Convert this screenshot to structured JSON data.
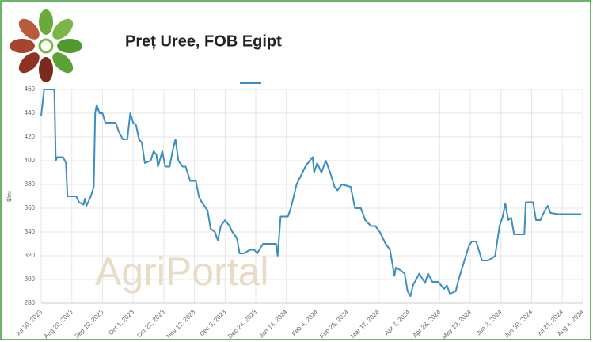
{
  "chart_data": {
    "type": "line",
    "title": "Preț Uree, FOB Egipt",
    "y_label": "$/mt",
    "watermark": "AgriPortal",
    "x": [
      "2023-07-30",
      "2023-08-01",
      "2023-08-08",
      "2023-08-09",
      "2023-08-10",
      "2023-08-14",
      "2023-08-16",
      "2023-08-17",
      "2023-08-23",
      "2023-08-25",
      "2023-08-28",
      "2023-08-29",
      "2023-08-30",
      "2023-09-02",
      "2023-09-04",
      "2023-09-05",
      "2023-09-06",
      "2023-09-08",
      "2023-09-10",
      "2023-09-12",
      "2023-09-19",
      "2023-09-21",
      "2023-09-24",
      "2023-09-27",
      "2023-09-29",
      "2023-10-01",
      "2023-10-03",
      "2023-10-05",
      "2023-10-07",
      "2023-10-09",
      "2023-10-13",
      "2023-10-15",
      "2023-10-17",
      "2023-10-18",
      "2023-10-21",
      "2023-10-23",
      "2023-10-26",
      "2023-10-28",
      "2023-10-30",
      "2023-11-01",
      "2023-11-04",
      "2023-11-06",
      "2023-11-09",
      "2023-11-13",
      "2023-11-15",
      "2023-11-17",
      "2023-11-21",
      "2023-11-23",
      "2023-11-26",
      "2023-11-28",
      "2023-11-30",
      "2023-12-03",
      "2023-12-06",
      "2023-12-08",
      "2023-12-11",
      "2023-12-13",
      "2023-12-16",
      "2023-12-20",
      "2023-12-23",
      "2023-12-25",
      "2023-12-29",
      "2024-01-07",
      "2024-01-08",
      "2024-01-10",
      "2024-01-15",
      "2024-01-17",
      "2024-01-19",
      "2024-01-21",
      "2024-01-23",
      "2024-01-27",
      "2024-01-30",
      "2024-02-01",
      "2024-02-02",
      "2024-02-04",
      "2024-02-07",
      "2024-02-10",
      "2024-02-13",
      "2024-02-16",
      "2024-02-18",
      "2024-02-21",
      "2024-02-27",
      "2024-03-01",
      "2024-03-05",
      "2024-03-08",
      "2024-03-12",
      "2024-03-15",
      "2024-03-18",
      "2024-03-22",
      "2024-03-25",
      "2024-03-28",
      "2024-03-29",
      "2024-04-01",
      "2024-04-04",
      "2024-04-06",
      "2024-04-08",
      "2024-04-10",
      "2024-04-12",
      "2024-04-14",
      "2024-04-18",
      "2024-04-20",
      "2024-04-23",
      "2024-04-27",
      "2024-05-01",
      "2024-05-03",
      "2024-05-05",
      "2024-05-09",
      "2024-05-11",
      "2024-05-14",
      "2024-05-16",
      "2024-05-18",
      "2024-05-20",
      "2024-05-23",
      "2024-05-27",
      "2024-05-31",
      "2024-06-03",
      "2024-06-05",
      "2024-06-08",
      "2024-06-10",
      "2024-06-12",
      "2024-06-14",
      "2024-06-16",
      "2024-06-18",
      "2024-06-25",
      "2024-06-26",
      "2024-07-01",
      "2024-07-03",
      "2024-07-06",
      "2024-07-09",
      "2024-07-11",
      "2024-07-13",
      "2024-07-18",
      "2024-08-03"
    ],
    "series": [
      {
        "color": "#3d8ec0",
        "values": [
          438,
          460,
          460,
          400,
          403,
          403,
          398,
          370,
          370,
          365,
          363,
          368,
          362,
          370,
          378,
          440,
          447,
          440,
          440,
          432,
          432,
          425,
          418,
          418,
          440,
          432,
          430,
          418,
          415,
          398,
          400,
          408,
          405,
          395,
          408,
          395,
          395,
          408,
          418,
          400,
          395,
          395,
          383,
          383,
          370,
          365,
          358,
          343,
          340,
          333,
          345,
          350,
          345,
          340,
          335,
          322,
          322,
          325,
          325,
          322,
          330,
          330,
          320,
          353,
          353,
          360,
          370,
          380,
          385,
          395,
          400,
          403,
          390,
          398,
          390,
          400,
          390,
          378,
          375,
          380,
          378,
          360,
          360,
          350,
          345,
          345,
          340,
          330,
          325,
          303,
          310,
          308,
          305,
          290,
          286,
          296,
          300,
          305,
          297,
          305,
          298,
          298,
          292,
          295,
          288,
          290,
          300,
          312,
          320,
          328,
          332,
          332,
          316,
          316,
          318,
          320,
          345,
          352,
          364,
          350,
          352,
          338,
          338,
          365,
          365,
          350,
          350,
          358,
          362,
          356,
          355,
          355
        ]
      }
    ],
    "xlim": [
      "2023-07-30",
      "2024-08-04"
    ],
    "xticks": [
      {
        "value": "2023-07-30",
        "label": "Jul 30, 2023"
      },
      {
        "value": "2023-08-20",
        "label": "Aug 20, 2023"
      },
      {
        "value": "2023-09-10",
        "label": "Sep 10, 2023"
      },
      {
        "value": "2023-10-01",
        "label": "Oct 1, 2023"
      },
      {
        "value": "2023-10-22",
        "label": "Oct 22, 2023"
      },
      {
        "value": "2023-11-12",
        "label": "Nov 12, 2023"
      },
      {
        "value": "2023-12-03",
        "label": "Dec 3, 2023"
      },
      {
        "value": "2023-12-24",
        "label": "Dec 24, 2023"
      },
      {
        "value": "2024-01-14",
        "label": "Jan 14, 2024"
      },
      {
        "value": "2024-02-04",
        "label": "Feb 4, 2024"
      },
      {
        "value": "2024-02-25",
        "label": "Feb 25, 2024"
      },
      {
        "value": "2024-03-17",
        "label": "Mar 17, 2024"
      },
      {
        "value": "2024-04-07",
        "label": "Apr 7, 2024"
      },
      {
        "value": "2024-04-28",
        "label": "Apr 28, 2024"
      },
      {
        "value": "2024-05-19",
        "label": "May 19, 2024"
      },
      {
        "value": "2024-06-09",
        "label": "Jun 9, 2024"
      },
      {
        "value": "2024-06-30",
        "label": "Jun 30, 2024"
      },
      {
        "value": "2024-07-21",
        "label": "Jul 21, 2024"
      },
      {
        "value": "2024-08-04",
        "label": "Aug 4, 2024"
      }
    ],
    "ylim": [
      280,
      460
    ],
    "yticks": [
      280,
      300,
      320,
      340,
      360,
      380,
      400,
      420,
      440,
      460
    ],
    "grid": true
  }
}
